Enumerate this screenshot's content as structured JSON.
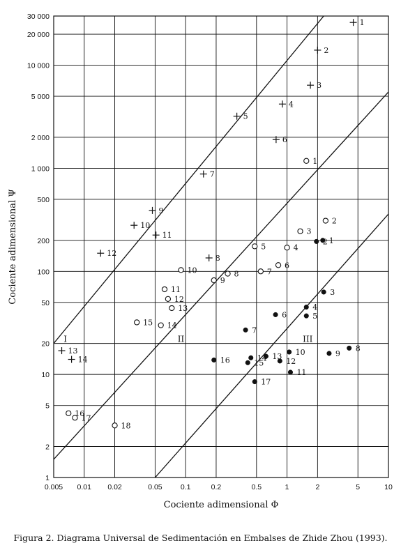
{
  "chart_data": {
    "type": "scatter",
    "xscale": "log",
    "yscale": "log",
    "xlim": [
      0.005,
      10
    ],
    "ylim": [
      1,
      30000
    ],
    "grid": true,
    "xlabel": "Cociente adimensional Φ",
    "ylabel": "Cociente adimensional Ψ",
    "x_ticks": [
      0.005,
      0.01,
      0.02,
      0.05,
      0.1,
      0.2,
      0.5,
      1,
      2,
      5,
      10
    ],
    "x_tick_labels": [
      "0.005",
      "0.01",
      "0.02",
      "0.05",
      "0.1",
      "0.2",
      "0.5",
      "1",
      "2",
      "5",
      "10"
    ],
    "y_ticks": [
      1,
      2,
      5,
      10,
      20,
      50,
      100,
      200,
      500,
      1000,
      2000,
      5000,
      10000,
      20000,
      30000
    ],
    "y_tick_labels": [
      "1",
      "2",
      "5",
      "10",
      "20",
      "50",
      "100",
      "200",
      "500",
      "1 000",
      "2 000",
      "5 000",
      "10 000",
      "20 000",
      "30 000"
    ],
    "boundary_lines": [
      {
        "points": [
          [
            0.005,
            20
          ],
          [
            2.3,
            30000
          ]
        ]
      },
      {
        "points": [
          [
            0.005,
            1.5
          ],
          [
            10,
            5500
          ]
        ]
      },
      {
        "points": [
          [
            0.05,
            1
          ],
          [
            10,
            360
          ]
        ]
      }
    ],
    "regions": [
      {
        "label": "I",
        "x": 0.0065,
        "y": 20
      },
      {
        "label": "II",
        "x": 0.09,
        "y": 20
      },
      {
        "label": "III",
        "x": 1.6,
        "y": 20
      }
    ],
    "series": [
      {
        "marker": "plus",
        "points": [
          {
            "label": "1",
            "x": 4.5,
            "y": 26000
          },
          {
            "label": "2",
            "x": 2.0,
            "y": 14000
          },
          {
            "label": "3",
            "x": 1.7,
            "y": 6400
          },
          {
            "label": "4",
            "x": 0.9,
            "y": 4200
          },
          {
            "label": "5",
            "x": 0.32,
            "y": 3200
          },
          {
            "label": "6",
            "x": 0.78,
            "y": 1900
          },
          {
            "label": "7",
            "x": 0.15,
            "y": 880
          },
          {
            "label": "8",
            "x": 0.17,
            "y": 135
          },
          {
            "label": "9",
            "x": 0.047,
            "y": 390
          },
          {
            "label": "10",
            "x": 0.031,
            "y": 280
          },
          {
            "label": "11",
            "x": 0.051,
            "y": 225
          },
          {
            "label": "12",
            "x": 0.0145,
            "y": 150
          },
          {
            "label": "13",
            "x": 0.006,
            "y": 17
          },
          {
            "label": "14",
            "x": 0.0075,
            "y": 14
          }
        ]
      },
      {
        "marker": "open-circle",
        "points": [
          {
            "label": "1",
            "x": 1.55,
            "y": 1180
          },
          {
            "label": "2",
            "x": 2.4,
            "y": 310
          },
          {
            "label": "3",
            "x": 1.35,
            "y": 245
          },
          {
            "label": "4",
            "x": 1.0,
            "y": 170
          },
          {
            "label": "5",
            "x": 0.48,
            "y": 175
          },
          {
            "label": "6",
            "x": 0.82,
            "y": 115
          },
          {
            "label": "7",
            "x": 0.55,
            "y": 100
          },
          {
            "label": "8",
            "x": 0.26,
            "y": 95
          },
          {
            "label": "9",
            "x": 0.19,
            "y": 82
          },
          {
            "label": "10",
            "x": 0.09,
            "y": 103
          },
          {
            "label": "11",
            "x": 0.062,
            "y": 67
          },
          {
            "label": "12",
            "x": 0.067,
            "y": 54
          },
          {
            "label": "13",
            "x": 0.073,
            "y": 44
          },
          {
            "label": "14",
            "x": 0.057,
            "y": 30
          },
          {
            "label": "15",
            "x": 0.033,
            "y": 32
          },
          {
            "label": "16",
            "x": 0.007,
            "y": 4.2
          },
          {
            "label": "17",
            "x": 0.0081,
            "y": 3.8
          },
          {
            "label": "18",
            "x": 0.02,
            "y": 3.2
          }
        ]
      },
      {
        "marker": "filled-circle",
        "points": [
          {
            "label": "1",
            "x": 2.25,
            "y": 200
          },
          {
            "label": "2",
            "x": 1.95,
            "y": 195
          },
          {
            "label": "3",
            "x": 2.3,
            "y": 63
          },
          {
            "label": "4",
            "x": 1.55,
            "y": 45
          },
          {
            "label": "5",
            "x": 1.55,
            "y": 37
          },
          {
            "label": "6",
            "x": 0.77,
            "y": 38
          },
          {
            "label": "7",
            "x": 0.39,
            "y": 27
          },
          {
            "label": "8",
            "x": 4.1,
            "y": 18
          },
          {
            "label": "9",
            "x": 2.6,
            "y": 16
          },
          {
            "label": "10",
            "x": 1.05,
            "y": 16.5
          },
          {
            "label": "11",
            "x": 1.08,
            "y": 10.5
          },
          {
            "label": "12",
            "x": 0.85,
            "y": 13.5
          },
          {
            "label": "13",
            "x": 0.62,
            "y": 15
          },
          {
            "label": "14",
            "x": 0.44,
            "y": 14.5
          },
          {
            "label": "15",
            "x": 0.41,
            "y": 13
          },
          {
            "label": "16",
            "x": 0.19,
            "y": 13.8
          },
          {
            "label": "17",
            "x": 0.48,
            "y": 8.5
          }
        ]
      }
    ]
  },
  "caption": "Figura 2. Diagrama Universal de Sedimentación en Embalses de Zhide Zhou (1993)."
}
